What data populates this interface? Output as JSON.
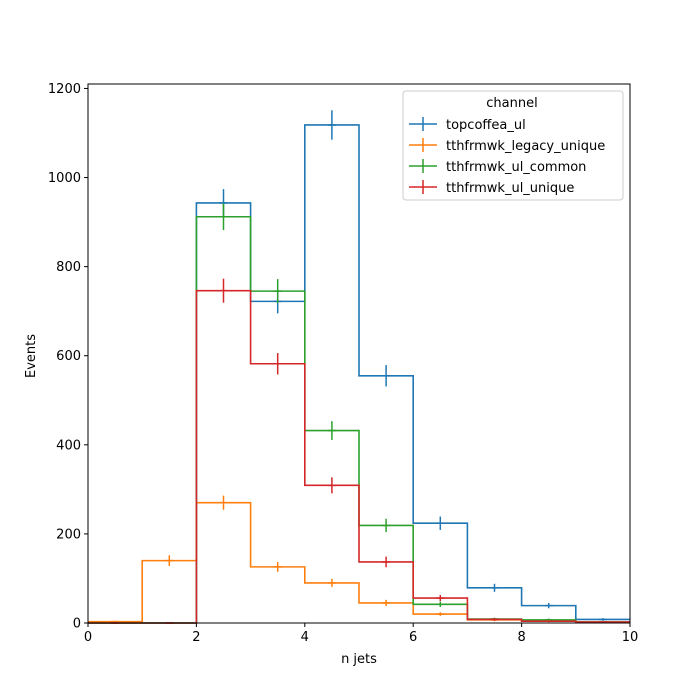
{
  "chart_data": {
    "type": "histogram-step",
    "xlabel": "n jets",
    "ylabel": "Events",
    "xlim": [
      0,
      10
    ],
    "ylim": [
      0,
      1210
    ],
    "xticks": [
      "0",
      "2",
      "4",
      "6",
      "8",
      "10"
    ],
    "yticks": [
      "0",
      "200",
      "400",
      "600",
      "800",
      "1000",
      "1200"
    ],
    "bin_edges": [
      0,
      1,
      2,
      3,
      4,
      5,
      6,
      7,
      8,
      9,
      10
    ],
    "grid": false,
    "legend": {
      "title": "channel",
      "position": "top-right"
    },
    "series": [
      {
        "name": "topcoffea_ul",
        "color": "#1f77b4",
        "values": [
          0,
          0,
          943,
          722,
          1118,
          555,
          224,
          79,
          39,
          8
        ],
        "errors": [
          0,
          0,
          31,
          27,
          33,
          24,
          15,
          9,
          6,
          3
        ]
      },
      {
        "name": "tthfrmwk_legacy_unique",
        "color": "#ff7f0e",
        "values": [
          3,
          140,
          270,
          126,
          90,
          45,
          20,
          7,
          4,
          2
        ],
        "errors": [
          2,
          12,
          16,
          11,
          9,
          7,
          4,
          3,
          2,
          1
        ]
      },
      {
        "name": "tthfrmwk_ul_common",
        "color": "#2ca02c",
        "values": [
          0,
          0,
          912,
          745,
          432,
          219,
          42,
          9,
          7,
          2
        ],
        "errors": [
          0,
          0,
          30,
          27,
          21,
          15,
          6,
          3,
          3,
          1
        ]
      },
      {
        "name": "tthfrmwk_ul_unique",
        "color": "#d62728",
        "values": [
          0,
          0,
          746,
          582,
          309,
          137,
          56,
          8,
          4,
          2
        ],
        "errors": [
          0,
          0,
          27,
          24,
          18,
          12,
          7,
          3,
          2,
          1
        ]
      }
    ]
  }
}
